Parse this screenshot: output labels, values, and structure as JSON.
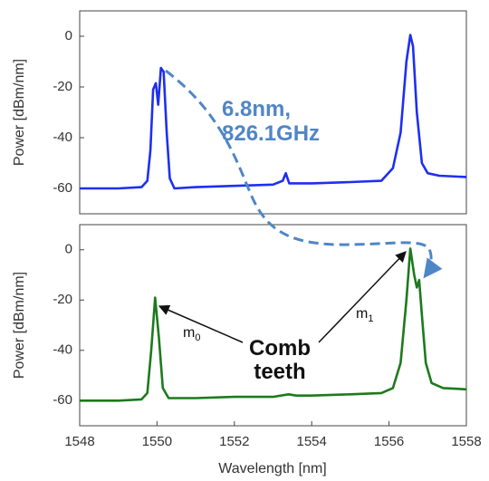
{
  "chart_data": [
    {
      "type": "line",
      "panel": "top",
      "xlabel": "",
      "ylabel": "Power [dBm/nm]",
      "xlim": [
        1548,
        1558
      ],
      "ylim": [
        -70,
        10
      ],
      "yticks": [
        "0",
        "-20",
        "-40",
        "-60"
      ],
      "ytick_values": [
        0,
        -20,
        -40,
        -60
      ],
      "grid": false,
      "series": [
        {
          "color": "#1f2ff0",
          "x": [
            1548.0,
            1549.0,
            1549.6,
            1549.75,
            1549.83,
            1549.9,
            1549.97,
            1550.03,
            1550.1,
            1550.17,
            1550.25,
            1550.33,
            1550.45,
            1551.0,
            1552.0,
            1553.0,
            1553.25,
            1553.33,
            1553.42,
            1554.0,
            1555.0,
            1555.8,
            1556.1,
            1556.3,
            1556.45,
            1556.55,
            1556.62,
            1556.72,
            1556.85,
            1557.0,
            1557.3,
            1558.0
          ],
          "y": [
            -60,
            -60,
            -59.5,
            -57,
            -45,
            -21,
            -18.5,
            -27,
            -12.5,
            -14,
            -38,
            -56,
            -60,
            -59.5,
            -59,
            -58.5,
            -57,
            -54,
            -58,
            -58,
            -57.5,
            -57,
            -52,
            -38,
            -10,
            0.5,
            -4,
            -30,
            -50,
            -54,
            -55,
            -55.5
          ]
        }
      ],
      "annotations": [
        {
          "text_line1": "6.8nm,",
          "text_line2": "826.1GHz",
          "color": "#4f86c6"
        }
      ]
    },
    {
      "type": "line",
      "panel": "bottom",
      "xlabel": "Wavelength [nm]",
      "ylabel": "Power [dBm/nm]",
      "xlim": [
        1548,
        1558
      ],
      "ylim": [
        -70,
        10
      ],
      "xticks": [
        "1548",
        "1550",
        "1552",
        "1554",
        "1556",
        "1558"
      ],
      "xtick_values": [
        1548,
        1550,
        1552,
        1554,
        1556,
        1558
      ],
      "yticks": [
        "0",
        "-20",
        "-40",
        "-60"
      ],
      "ytick_values": [
        0,
        -20,
        -40,
        -60
      ],
      "grid": false,
      "series": [
        {
          "color": "#1d7a1d",
          "x": [
            1548.0,
            1549.0,
            1549.6,
            1549.75,
            1549.85,
            1549.95,
            1550.05,
            1550.15,
            1550.3,
            1551.0,
            1552.0,
            1553.0,
            1553.4,
            1553.6,
            1554.0,
            1555.0,
            1555.8,
            1556.1,
            1556.3,
            1556.45,
            1556.55,
            1556.65,
            1556.72,
            1556.78,
            1556.85,
            1556.95,
            1557.1,
            1557.4,
            1558.0
          ],
          "y": [
            -60,
            -60,
            -59.5,
            -57,
            -40,
            -19,
            -35,
            -55,
            -59,
            -59,
            -58.5,
            -58.5,
            -57.5,
            -58,
            -58,
            -57.5,
            -57,
            -55,
            -45,
            -20,
            0.5,
            -10,
            -15,
            -12,
            -26,
            -45,
            -53,
            -55,
            -55.5
          ]
        }
      ],
      "annotations": [
        {
          "text": "m",
          "sub": "0"
        },
        {
          "text": "m",
          "sub": "1"
        },
        {
          "text_line1": "Comb",
          "text_line2": "teeth"
        }
      ]
    }
  ]
}
